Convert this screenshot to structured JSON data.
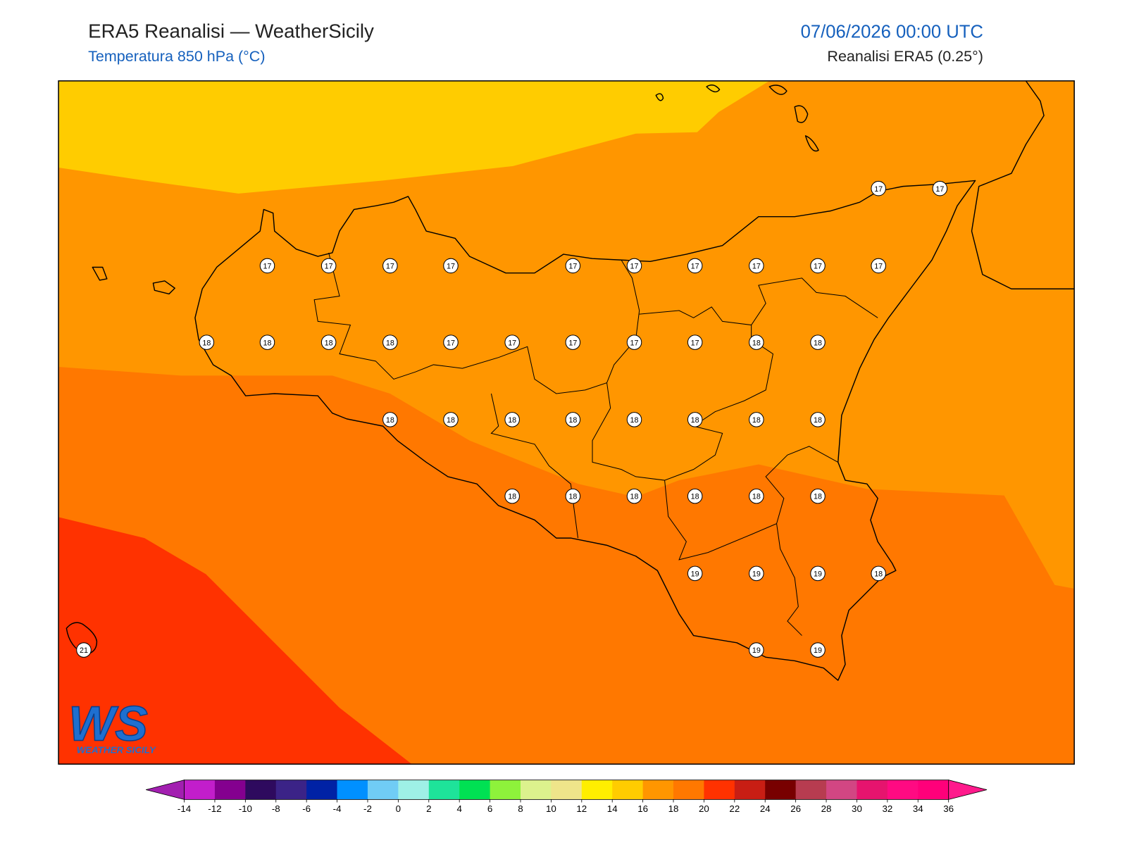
{
  "header": {
    "title": "ERA5 Reanalisi — WeatherSicily",
    "subtitle": "Temperatura 850 hPa (°C)",
    "datetime": "07/06/2026 00:00 UTC",
    "source": "Reanalisi ERA5 (0.25°)"
  },
  "stations": [
    17,
    17,
    17,
    17,
    17,
    17,
    17,
    17,
    17,
    17,
    17,
    17,
    18,
    18,
    18,
    18,
    17,
    17,
    17,
    17,
    17,
    18,
    18,
    18,
    18,
    18,
    18,
    18,
    18,
    18,
    18,
    18,
    18,
    18,
    18,
    18,
    18,
    19,
    19,
    19,
    18,
    21,
    19,
    19
  ],
  "logo": {
    "mark": "WS",
    "name": "WEATHER SICILY"
  },
  "colorbar": {
    "ticks": [
      -14,
      -12,
      -10,
      -8,
      -6,
      -4,
      -2,
      0,
      2,
      4,
      6,
      8,
      10,
      12,
      14,
      16,
      18,
      20,
      22,
      24,
      26,
      28,
      30,
      32,
      34,
      36
    ],
    "colors": [
      "#c21ecb",
      "#84008f",
      "#2e0a5e",
      "#3b2387",
      "#0022a5",
      "#0090ff",
      "#70ccf5",
      "#9ef0e6",
      "#1ee39a",
      "#00e153",
      "#8ef23b",
      "#dcf28d",
      "#efe58a",
      "#ffee00",
      "#ffcc00",
      "#ff9600",
      "#ff7800",
      "#ff3200",
      "#c81e14",
      "#780000",
      "#b73c50",
      "#d24683",
      "#e6146e",
      "#ff0a82",
      "#ff007a"
    ],
    "extend_colors": [
      "#a21fb0",
      "#ff1a8c"
    ]
  }
}
